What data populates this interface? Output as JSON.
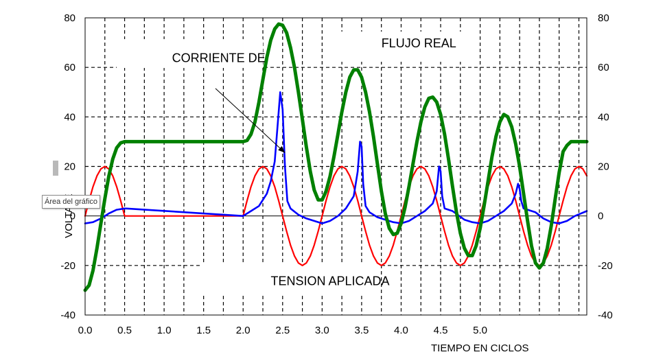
{
  "chart_data": {
    "type": "line",
    "xlabel": "TIEMPO EN  CICLOS",
    "ylabel": "VOLTAJE",
    "xlim": [
      0,
      6.35
    ],
    "ylim": [
      -40,
      80
    ],
    "x_tick_labels": [
      "0.0",
      "0.5",
      "1.0",
      "1.5",
      "2.0",
      "2.5",
      "3.0",
      "3.5",
      "4.0",
      "4.5",
      "5.0"
    ],
    "x_tick_values": [
      0,
      0.5,
      1.0,
      1.5,
      2.0,
      2.5,
      3.0,
      3.5,
      4.0,
      4.5,
      5.0
    ],
    "y_ticks": [
      -40,
      -20,
      0,
      20,
      40,
      60,
      80
    ],
    "y_tick_labels_left": [
      "-40",
      "-20",
      "0",
      "20",
      "40",
      "60",
      "80"
    ],
    "y_tick_labels_right": [
      "-40",
      "-20",
      "0",
      "20",
      "40",
      "60",
      "80"
    ],
    "grid": true,
    "annotations": [
      {
        "text": "CORRIENTE DE",
        "x": 1.1,
        "y": 64
      },
      {
        "text": "FLUJO REAL",
        "x": 3.75,
        "y": 70
      },
      {
        "text": "TENSION APLICADA",
        "x": 2.35,
        "y": -26
      }
    ],
    "series": [
      {
        "color": "#008000",
        "x": [
          0,
          0.05,
          0.1,
          0.15,
          0.2,
          0.25,
          0.3,
          0.35,
          0.4,
          0.45,
          0.5,
          0.55,
          0.7,
          1.0,
          1.5,
          1.9,
          2.0,
          2.05,
          2.1,
          2.15,
          2.2,
          2.25,
          2.3,
          2.35,
          2.4,
          2.45,
          2.5,
          2.55,
          2.6,
          2.65,
          2.7,
          2.75,
          2.8,
          2.85,
          2.9,
          2.95,
          3.0,
          3.05,
          3.1,
          3.15,
          3.2,
          3.25,
          3.3,
          3.35,
          3.4,
          3.45,
          3.5,
          3.55,
          3.6,
          3.65,
          3.7,
          3.75,
          3.8,
          3.85,
          3.9,
          3.95,
          4.0,
          4.05,
          4.1,
          4.15,
          4.2,
          4.25,
          4.3,
          4.35,
          4.4,
          4.45,
          4.5,
          4.55,
          4.6,
          4.65,
          4.7,
          4.75,
          4.8,
          4.85,
          4.9,
          4.95,
          5.0,
          5.05,
          5.1,
          5.15,
          5.2,
          5.25,
          5.3,
          5.35,
          5.4,
          5.45,
          5.5,
          5.55,
          5.6,
          5.65,
          5.7,
          5.75,
          5.8,
          5.85,
          5.9,
          5.95,
          6.0,
          6.05,
          6.1,
          6.15,
          6.2,
          6.25,
          6.3,
          6.35
        ],
        "values": [
          -30,
          -28,
          -22,
          -13,
          -3,
          7,
          16,
          23,
          27.5,
          29.5,
          30,
          30,
          30,
          30,
          30,
          30,
          30,
          30.5,
          33,
          38,
          46,
          55,
          64,
          71,
          75.5,
          77.5,
          77,
          74,
          68,
          60,
          50,
          39,
          28,
          18,
          10.5,
          6.5,
          6.5,
          10,
          16,
          24,
          33,
          42,
          50,
          56,
          59,
          59,
          56,
          50,
          42,
          32,
          21,
          10,
          1,
          -5,
          -7.5,
          -7,
          -3,
          3.5,
          12,
          21,
          30,
          38,
          44,
          47.5,
          48,
          46,
          41,
          33,
          23,
          12,
          1.5,
          -7,
          -13,
          -16,
          -16,
          -12,
          -5,
          4,
          14,
          24,
          32,
          38,
          41,
          40,
          36,
          29,
          20,
          9,
          -2,
          -12,
          -19,
          -21,
          -19,
          -13,
          -4,
          7,
          17.5,
          26,
          28.5,
          30,
          30,
          30,
          30,
          30
        ]
      },
      {
        "color": "#ff0000",
        "x": [
          0,
          0.05,
          0.1,
          0.15,
          0.2,
          0.25,
          0.3,
          0.35,
          0.4,
          0.45,
          0.5,
          0.55,
          0.6,
          0.7,
          1.0,
          1.5,
          2.0,
          2.05,
          2.1,
          2.15,
          2.2,
          2.25,
          2.3,
          2.35,
          2.4,
          2.45,
          2.5,
          2.55,
          2.6,
          2.65,
          2.7,
          2.75,
          2.8,
          2.85,
          2.9,
          2.95,
          3.0,
          3.05,
          3.1,
          3.15,
          3.2,
          3.25,
          3.3,
          3.35,
          3.4,
          3.45,
          3.5,
          3.55,
          3.6,
          3.65,
          3.7,
          3.75,
          3.8,
          3.85,
          3.9,
          3.95,
          4.0,
          4.05,
          4.1,
          4.15,
          4.2,
          4.25,
          4.3,
          4.35,
          4.4,
          4.45,
          4.5,
          4.55,
          4.6,
          4.65,
          4.7,
          4.75,
          4.8,
          4.85,
          4.9,
          4.95,
          5.0,
          5.05,
          5.1,
          5.15,
          5.2,
          5.25,
          5.3,
          5.35,
          5.4,
          5.45,
          5.5,
          5.55,
          5.6,
          5.65,
          5.7,
          5.75,
          5.8,
          5.85,
          5.9,
          5.95,
          6.0,
          6.05,
          6.1,
          6.15,
          6.2,
          6.25,
          6.3,
          6.35
        ],
        "values": [
          0,
          6.2,
          11.8,
          16.2,
          19,
          20,
          19,
          16.2,
          11.8,
          6.2,
          0,
          0,
          0,
          0,
          0,
          0,
          0,
          6.2,
          11.8,
          16.2,
          19,
          20,
          19,
          16.2,
          11.8,
          6.2,
          0,
          -6.2,
          -11.8,
          -16.2,
          -19,
          -20,
          -19,
          -16.2,
          -11.8,
          -6.2,
          0,
          6.2,
          11.8,
          16.2,
          19,
          20,
          19,
          16.2,
          11.8,
          6.2,
          0,
          -6.2,
          -11.8,
          -16.2,
          -19,
          -20,
          -19,
          -16.2,
          -11.8,
          -6.2,
          0,
          6.2,
          11.8,
          16.2,
          19,
          20,
          19,
          16.2,
          11.8,
          6.2,
          0,
          -6.2,
          -11.8,
          -16.2,
          -19,
          -20,
          -19,
          -16.2,
          -11.8,
          -6.2,
          0,
          6.2,
          11.8,
          16.2,
          19,
          20,
          19,
          16.2,
          11.8,
          6.2,
          0,
          -6.2,
          -11.8,
          -16.2,
          -19,
          -20,
          -19,
          -16.2,
          -11.8,
          -6.2,
          0,
          6.2,
          11.8,
          16.2,
          19,
          20,
          19,
          16.2
        ]
      },
      {
        "color": "#0000ff",
        "x": [
          0,
          0.1,
          0.2,
          0.3,
          0.4,
          0.5,
          0.52,
          2.0,
          2.1,
          2.2,
          2.3,
          2.35,
          2.4,
          2.44,
          2.47,
          2.5,
          2.53,
          2.56,
          2.6,
          2.7,
          2.8,
          2.9,
          3.0,
          3.1,
          3.2,
          3.3,
          3.4,
          3.45,
          3.48,
          3.5,
          3.52,
          3.55,
          3.6,
          3.7,
          3.8,
          3.9,
          4.0,
          4.1,
          4.2,
          4.3,
          4.4,
          4.45,
          4.48,
          4.5,
          4.52,
          4.55,
          4.65,
          4.8,
          4.9,
          5.0,
          5.1,
          5.2,
          5.3,
          5.4,
          5.45,
          5.48,
          5.5,
          5.52,
          5.55,
          5.7,
          5.8,
          5.9,
          6.0,
          6.1,
          6.2,
          6.35
        ],
        "values": [
          -3,
          -2.5,
          -1,
          1,
          2.5,
          3,
          3,
          0,
          2,
          4,
          9,
          14,
          22,
          38,
          50,
          43,
          20,
          6,
          3,
          0.5,
          -1,
          -2,
          -3,
          -2,
          0,
          3,
          8,
          18,
          30,
          28,
          13,
          4,
          1.5,
          -0.5,
          -1.5,
          -2.5,
          -3,
          -2,
          0,
          2,
          5,
          10,
          20,
          18,
          8,
          3,
          2,
          -1.5,
          -2.5,
          -3,
          -2,
          0,
          2,
          5,
          9,
          13,
          11,
          6,
          3,
          1.5,
          -1,
          -2.5,
          -3,
          -2,
          0,
          2
        ]
      }
    ]
  },
  "tooltip": "Área del gráfico"
}
